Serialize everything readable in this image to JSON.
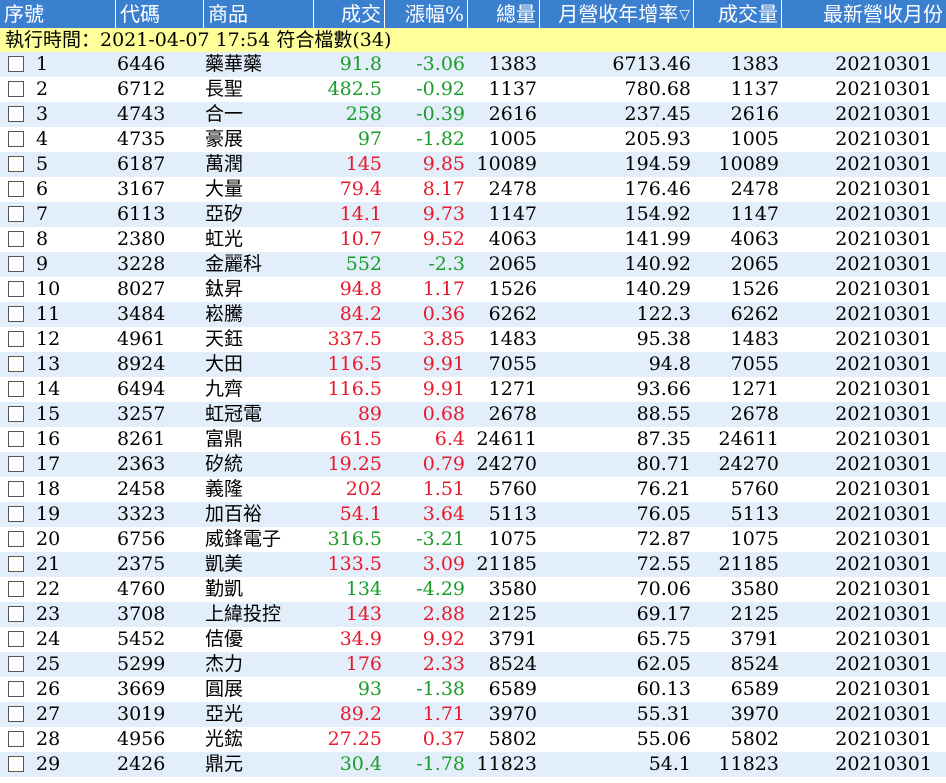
{
  "columns": {
    "seq": "序號",
    "code": "代碼",
    "name": "商品",
    "price": "成交",
    "change": "漲幅%",
    "volume": "總量",
    "revenue_growth": "月營收年增率",
    "sort_icon": "▽",
    "trade_volume": "成交量",
    "latest_month": "最新營收月份"
  },
  "status_text": "執行時間：2021-04-07 17:54 符合檔數(34)",
  "colors": {
    "up": "#e8192c",
    "down": "#1a9c2a",
    "header": "#3b7fcf",
    "status": "#ffff99",
    "alt_row": "#e2eef9"
  },
  "rows": [
    {
      "seq": "1",
      "code": "6446",
      "name": "藥華藥",
      "price": "91.8",
      "change": "-3.06",
      "volume": "1383",
      "growth": "6713.46",
      "tvol": "1383",
      "month": "20210301",
      "dir": "down"
    },
    {
      "seq": "2",
      "code": "6712",
      "name": "長聖",
      "price": "482.5",
      "change": "-0.92",
      "volume": "1137",
      "growth": "780.68",
      "tvol": "1137",
      "month": "20210301",
      "dir": "down"
    },
    {
      "seq": "3",
      "code": "4743",
      "name": "合一",
      "price": "258",
      "change": "-0.39",
      "volume": "2616",
      "growth": "237.45",
      "tvol": "2616",
      "month": "20210301",
      "dir": "down"
    },
    {
      "seq": "4",
      "code": "4735",
      "name": "豪展",
      "price": "97",
      "change": "-1.82",
      "volume": "1005",
      "growth": "205.93",
      "tvol": "1005",
      "month": "20210301",
      "dir": "down"
    },
    {
      "seq": "5",
      "code": "6187",
      "name": "萬潤",
      "price": "145",
      "change": "9.85",
      "volume": "10089",
      "growth": "194.59",
      "tvol": "10089",
      "month": "20210301",
      "dir": "up"
    },
    {
      "seq": "6",
      "code": "3167",
      "name": "大量",
      "price": "79.4",
      "change": "8.17",
      "volume": "2478",
      "growth": "176.46",
      "tvol": "2478",
      "month": "20210301",
      "dir": "up"
    },
    {
      "seq": "7",
      "code": "6113",
      "name": "亞矽",
      "price": "14.1",
      "change": "9.73",
      "volume": "1147",
      "growth": "154.92",
      "tvol": "1147",
      "month": "20210301",
      "dir": "up"
    },
    {
      "seq": "8",
      "code": "2380",
      "name": "虹光",
      "price": "10.7",
      "change": "9.52",
      "volume": "4063",
      "growth": "141.99",
      "tvol": "4063",
      "month": "20210301",
      "dir": "up"
    },
    {
      "seq": "9",
      "code": "3228",
      "name": "金麗科",
      "price": "552",
      "change": "-2.3",
      "volume": "2065",
      "growth": "140.92",
      "tvol": "2065",
      "month": "20210301",
      "dir": "down"
    },
    {
      "seq": "10",
      "code": "8027",
      "name": "鈦昇",
      "price": "94.8",
      "change": "1.17",
      "volume": "1526",
      "growth": "140.29",
      "tvol": "1526",
      "month": "20210301",
      "dir": "up"
    },
    {
      "seq": "11",
      "code": "3484",
      "name": "崧騰",
      "price": "84.2",
      "change": "0.36",
      "volume": "6262",
      "growth": "122.3",
      "tvol": "6262",
      "month": "20210301",
      "dir": "up"
    },
    {
      "seq": "12",
      "code": "4961",
      "name": "天鈺",
      "price": "337.5",
      "change": "3.85",
      "volume": "1483",
      "growth": "95.38",
      "tvol": "1483",
      "month": "20210301",
      "dir": "up"
    },
    {
      "seq": "13",
      "code": "8924",
      "name": "大田",
      "price": "116.5",
      "change": "9.91",
      "volume": "7055",
      "growth": "94.8",
      "tvol": "7055",
      "month": "20210301",
      "dir": "up"
    },
    {
      "seq": "14",
      "code": "6494",
      "name": "九齊",
      "price": "116.5",
      "change": "9.91",
      "volume": "1271",
      "growth": "93.66",
      "tvol": "1271",
      "month": "20210301",
      "dir": "up"
    },
    {
      "seq": "15",
      "code": "3257",
      "name": "虹冠電",
      "price": "89",
      "change": "0.68",
      "volume": "2678",
      "growth": "88.55",
      "tvol": "2678",
      "month": "20210301",
      "dir": "up"
    },
    {
      "seq": "16",
      "code": "8261",
      "name": "富鼎",
      "price": "61.5",
      "change": "6.4",
      "volume": "24611",
      "growth": "87.35",
      "tvol": "24611",
      "month": "20210301",
      "dir": "up"
    },
    {
      "seq": "17",
      "code": "2363",
      "name": "矽統",
      "price": "19.25",
      "change": "0.79",
      "volume": "24270",
      "growth": "80.71",
      "tvol": "24270",
      "month": "20210301",
      "dir": "up"
    },
    {
      "seq": "18",
      "code": "2458",
      "name": "義隆",
      "price": "202",
      "change": "1.51",
      "volume": "5760",
      "growth": "76.21",
      "tvol": "5760",
      "month": "20210301",
      "dir": "up"
    },
    {
      "seq": "19",
      "code": "3323",
      "name": "加百裕",
      "price": "54.1",
      "change": "3.64",
      "volume": "5113",
      "growth": "76.05",
      "tvol": "5113",
      "month": "20210301",
      "dir": "up"
    },
    {
      "seq": "20",
      "code": "6756",
      "name": "威鋒電子",
      "price": "316.5",
      "change": "-3.21",
      "volume": "1075",
      "growth": "72.87",
      "tvol": "1075",
      "month": "20210301",
      "dir": "down"
    },
    {
      "seq": "21",
      "code": "2375",
      "name": "凱美",
      "price": "133.5",
      "change": "3.09",
      "volume": "21185",
      "growth": "72.55",
      "tvol": "21185",
      "month": "20210301",
      "dir": "up"
    },
    {
      "seq": "22",
      "code": "4760",
      "name": "勤凱",
      "price": "134",
      "change": "-4.29",
      "volume": "3580",
      "growth": "70.06",
      "tvol": "3580",
      "month": "20210301",
      "dir": "down"
    },
    {
      "seq": "23",
      "code": "3708",
      "name": "上緯投控",
      "price": "143",
      "change": "2.88",
      "volume": "2125",
      "growth": "69.17",
      "tvol": "2125",
      "month": "20210301",
      "dir": "up"
    },
    {
      "seq": "24",
      "code": "5452",
      "name": "佶優",
      "price": "34.9",
      "change": "9.92",
      "volume": "3791",
      "growth": "65.75",
      "tvol": "3791",
      "month": "20210301",
      "dir": "up"
    },
    {
      "seq": "25",
      "code": "5299",
      "name": "杰力",
      "price": "176",
      "change": "2.33",
      "volume": "8524",
      "growth": "62.05",
      "tvol": "8524",
      "month": "20210301",
      "dir": "up"
    },
    {
      "seq": "26",
      "code": "3669",
      "name": "圓展",
      "price": "93",
      "change": "-1.38",
      "volume": "6589",
      "growth": "60.13",
      "tvol": "6589",
      "month": "20210301",
      "dir": "down"
    },
    {
      "seq": "27",
      "code": "3019",
      "name": "亞光",
      "price": "89.2",
      "change": "1.71",
      "volume": "3970",
      "growth": "55.31",
      "tvol": "3970",
      "month": "20210301",
      "dir": "up"
    },
    {
      "seq": "28",
      "code": "4956",
      "name": "光鋐",
      "price": "27.25",
      "change": "0.37",
      "volume": "5802",
      "growth": "55.06",
      "tvol": "5802",
      "month": "20210301",
      "dir": "up"
    },
    {
      "seq": "29",
      "code": "2426",
      "name": "鼎元",
      "price": "30.4",
      "change": "-1.78",
      "volume": "11823",
      "growth": "54.1",
      "tvol": "11823",
      "month": "20210301",
      "dir": "down"
    }
  ]
}
